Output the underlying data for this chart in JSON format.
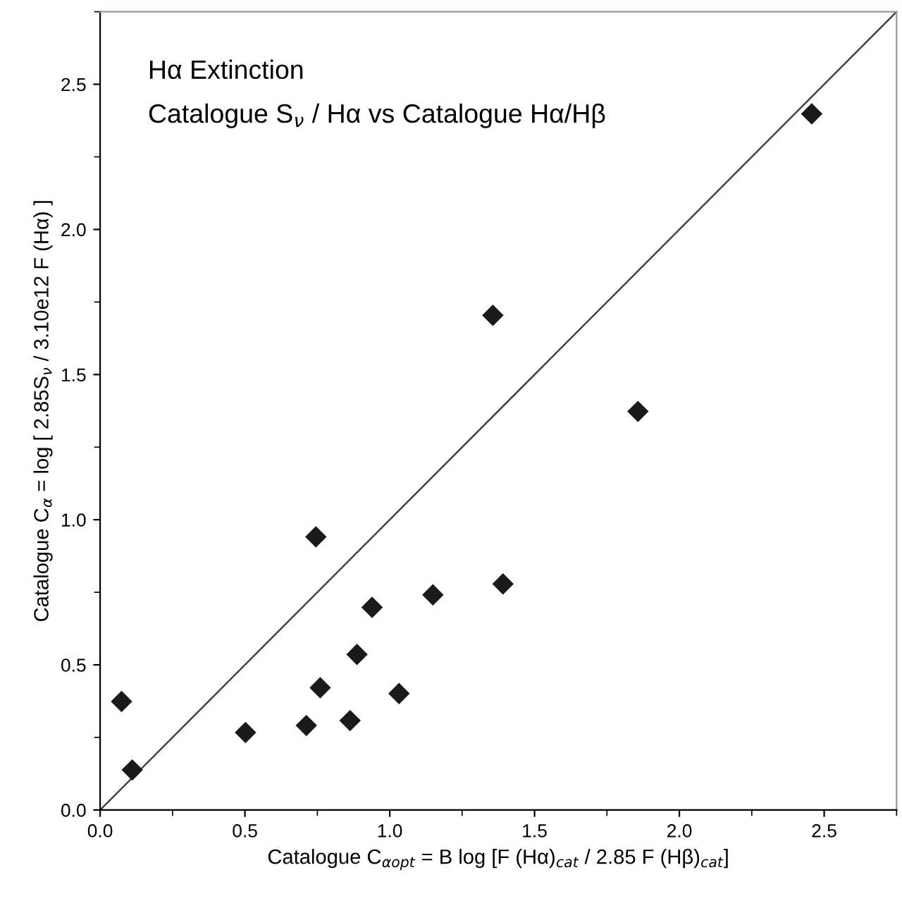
{
  "chart_data": {
    "type": "scatter",
    "xlabel": "Catalogue C$_{αopt}$ = B log [F (Hα)$_{cat}$ / 2.85 F (Hβ)$_{cat}$]",
    "ylabel": "Catalogue C$_{α}$ = log [ 2.85S$_{ν}$ / 3.10e12 F (Hα) ]",
    "annotations": [
      "Hα Extinction",
      "Catalogue S$_{ν}$ / Hα vs Catalogue Hα/Hβ"
    ],
    "series": [
      {
        "color": "#1a1a1a",
        "marker": "diamond",
        "x": [
          2.457,
          1.356,
          1.857,
          0.745,
          1.391,
          1.149,
          0.939,
          0.887,
          0.76,
          1.032,
          0.074,
          0.502,
          0.712,
          0.863,
          0.111
        ],
        "values": [
          2.398,
          1.704,
          1.373,
          0.941,
          0.779,
          0.741,
          0.698,
          0.536,
          0.421,
          0.401,
          0.374,
          0.267,
          0.291,
          0.308,
          0.138
        ]
      },
      {
        "type": "line",
        "color": "#444444",
        "marker": "none",
        "line_style": "solid",
        "x": [
          0,
          2.75
        ],
        "values": [
          0,
          2.75
        ]
      }
    ],
    "xlim": [
      0,
      2.75
    ],
    "ylim": [
      0,
      2.75
    ],
    "xticks": [
      {
        "value": 0,
        "label": "0.0"
      },
      0.5,
      {
        "value": 1,
        "label": "1.0"
      },
      1.5,
      {
        "value": 2,
        "label": "2.0"
      },
      2.5
    ],
    "yticks": [
      {
        "value": 0,
        "label": "0.0"
      },
      0.5,
      {
        "value": 1,
        "label": "1.0"
      },
      1.5,
      {
        "value": 2,
        "label": "2.0"
      },
      2.5
    ],
    "grid": false,
    "legend": false
  }
}
